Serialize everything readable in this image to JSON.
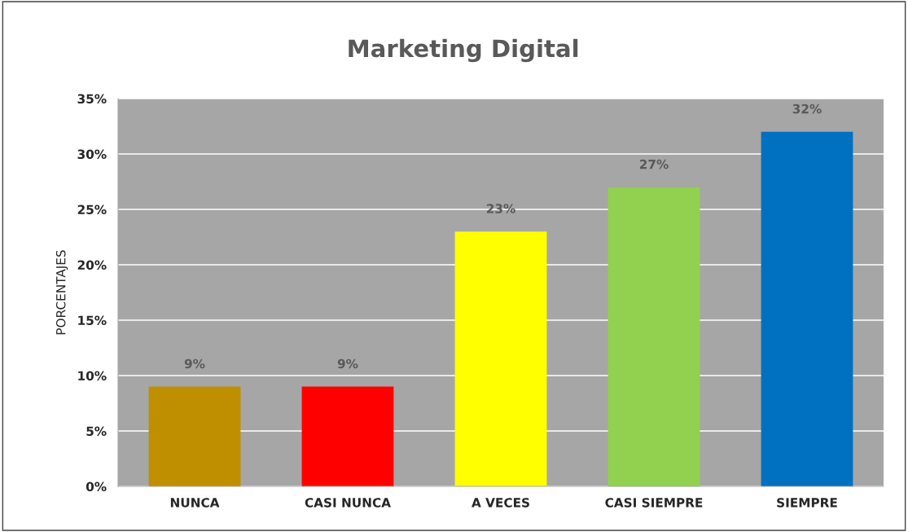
{
  "chart_data": {
    "type": "bar",
    "title": "Marketing Digital",
    "ylabel": "PORCENTAJES",
    "categories": [
      "NUNCA",
      "CASI NUNCA",
      "A VECES",
      "CASI SIEMPRE",
      "SIEMPRE"
    ],
    "values": [
      9,
      9,
      23,
      27,
      32
    ],
    "colors": [
      "#bf8f00",
      "#ff0000",
      "#ffff00",
      "#92d050",
      "#0070c0"
    ],
    "value_labels": [
      "9%",
      "9%",
      "23%",
      "27%",
      "32%"
    ],
    "ylim": [
      0,
      35
    ],
    "yticks": [
      {
        "value": 0,
        "label": "0%"
      },
      {
        "value": 5,
        "label": "5%"
      },
      {
        "value": 10,
        "label": "10%"
      },
      {
        "value": 15,
        "label": "15%"
      },
      {
        "value": 20,
        "label": "20%"
      },
      {
        "value": 25,
        "label": "25%"
      },
      {
        "value": 30,
        "label": "30%"
      },
      {
        "value": 35,
        "label": "35%"
      }
    ],
    "grid": "y",
    "legend": false
  }
}
